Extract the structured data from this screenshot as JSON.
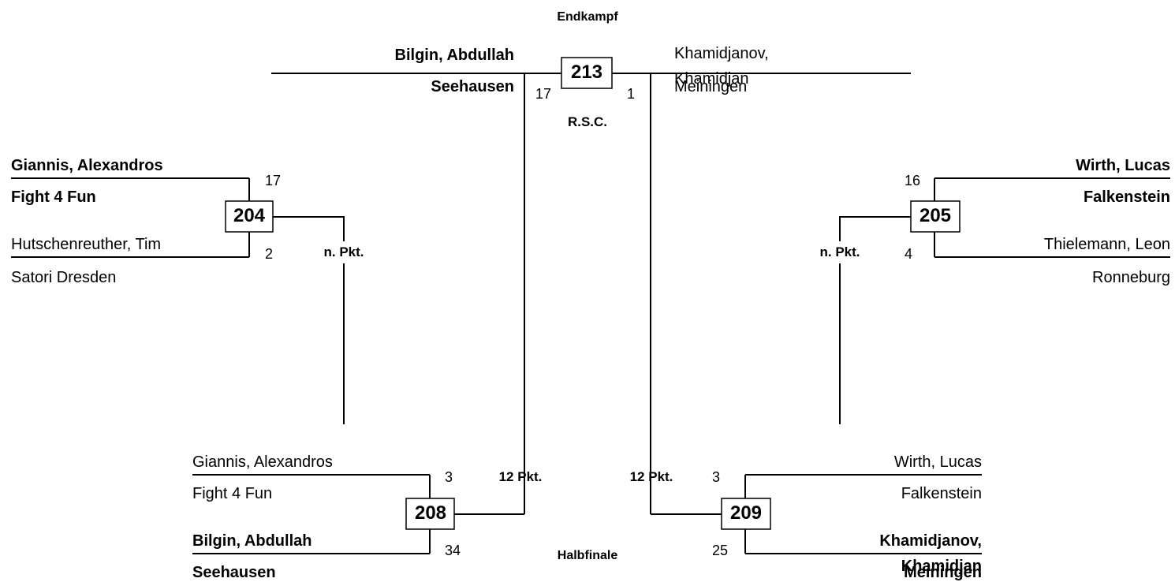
{
  "final": {
    "heading": "Endkampf",
    "number": 213,
    "result": "R.S.C.",
    "left": {
      "name": "Bilgin, Abdullah",
      "club": "Seehausen",
      "score": 17
    },
    "right": {
      "name": "Khamidjanov, Khamidjan",
      "club": "Meiningen",
      "score": 1
    }
  },
  "semifinal_heading": "Halbfinale",
  "matches": [
    {
      "number": 204,
      "result": "n. Pkt.",
      "top": {
        "name": "Giannis, Alexandros",
        "club": "Fight 4 Fun",
        "score": 17
      },
      "bottom": {
        "name": "Hutschenreuther, Tim",
        "club": "Satori Dresden",
        "score": 2
      }
    },
    {
      "number": 205,
      "result": "n. Pkt.",
      "top": {
        "name": "Wirth, Lucas",
        "club": "Falkenstein",
        "score": 16
      },
      "bottom": {
        "name": "Thielemann, Leon",
        "club": "Ronneburg",
        "score": 4
      }
    },
    {
      "number": 208,
      "result": "12 Pkt.",
      "top": {
        "name": "Giannis, Alexandros",
        "club": "Fight 4 Fun",
        "score": 3
      },
      "bottom": {
        "name": "Bilgin, Abdullah",
        "club": "Seehausen",
        "score": 34
      }
    },
    {
      "number": 209,
      "result": "12 Pkt.",
      "top": {
        "name": "Wirth, Lucas",
        "club": "Falkenstein",
        "score": 3
      },
      "bottom": {
        "name": "Khamidjanov, Khamidjan",
        "club": "Meiningen",
        "score": 25
      }
    }
  ]
}
